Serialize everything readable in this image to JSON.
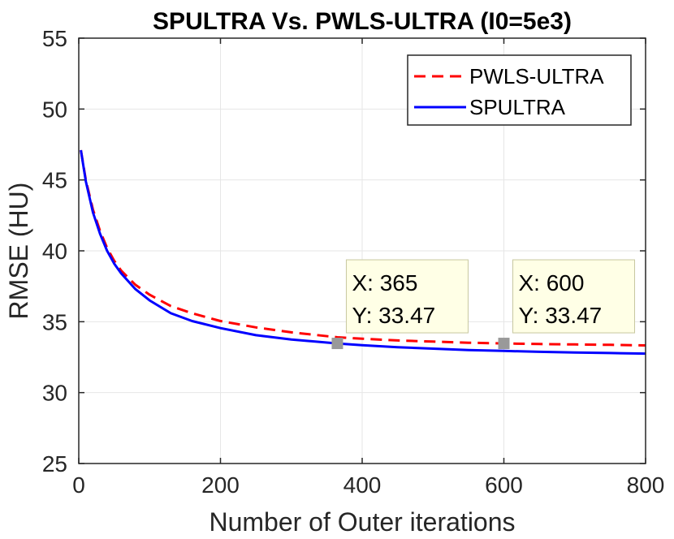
{
  "chart_data": {
    "type": "line",
    "title": "SPULTRA Vs. PWLS-ULTRA (I0=5e3)",
    "xlabel": "Number of Outer iterations",
    "ylabel": "RMSE (HU)",
    "xlim": [
      0,
      800
    ],
    "ylim": [
      25,
      55
    ],
    "xticks": [
      "0",
      "200",
      "400",
      "600",
      "800"
    ],
    "yticks": [
      "25",
      "30",
      "35",
      "40",
      "45",
      "50",
      "55"
    ],
    "grid": true,
    "legend_position": "top-right",
    "series": [
      {
        "name": "PWLS-ULTRA",
        "color": "#ff0000",
        "style": "dashed",
        "x": [
          3,
          10,
          20,
          30,
          40,
          50,
          60,
          80,
          100,
          130,
          160,
          200,
          250,
          300,
          365,
          400,
          450,
          500,
          550,
          600,
          650,
          700,
          750,
          800
        ],
        "y": [
          47.1,
          45.0,
          42.9,
          41.4,
          40.2,
          39.3,
          38.6,
          37.6,
          36.9,
          36.1,
          35.6,
          35.05,
          34.6,
          34.25,
          33.9,
          33.8,
          33.68,
          33.6,
          33.52,
          33.47,
          33.43,
          33.4,
          33.37,
          33.33
        ]
      },
      {
        "name": "SPULTRA",
        "color": "#0000ff",
        "style": "solid",
        "x": [
          3,
          10,
          20,
          30,
          40,
          50,
          60,
          80,
          100,
          130,
          160,
          200,
          250,
          300,
          365,
          400,
          450,
          500,
          550,
          600,
          650,
          700,
          750,
          800
        ],
        "y": [
          47.1,
          44.9,
          42.7,
          41.2,
          40.0,
          39.1,
          38.4,
          37.3,
          36.5,
          35.6,
          35.05,
          34.55,
          34.05,
          33.75,
          33.47,
          33.35,
          33.2,
          33.1,
          33.0,
          32.94,
          32.88,
          32.83,
          32.79,
          32.75
        ]
      }
    ],
    "datatips": [
      {
        "x": 365,
        "y": 33.47,
        "x_text": "X: 365",
        "y_text": "Y: 33.47"
      },
      {
        "x": 600,
        "y": 33.47,
        "x_text": "X: 600",
        "y_text": "Y: 33.47"
      }
    ],
    "colors": {
      "axis": "#262626",
      "grid": "#e6e6e6",
      "datatip_bg": "#ffffe6",
      "datatip_border": "#c8c8a0",
      "marker": "#999999"
    }
  }
}
